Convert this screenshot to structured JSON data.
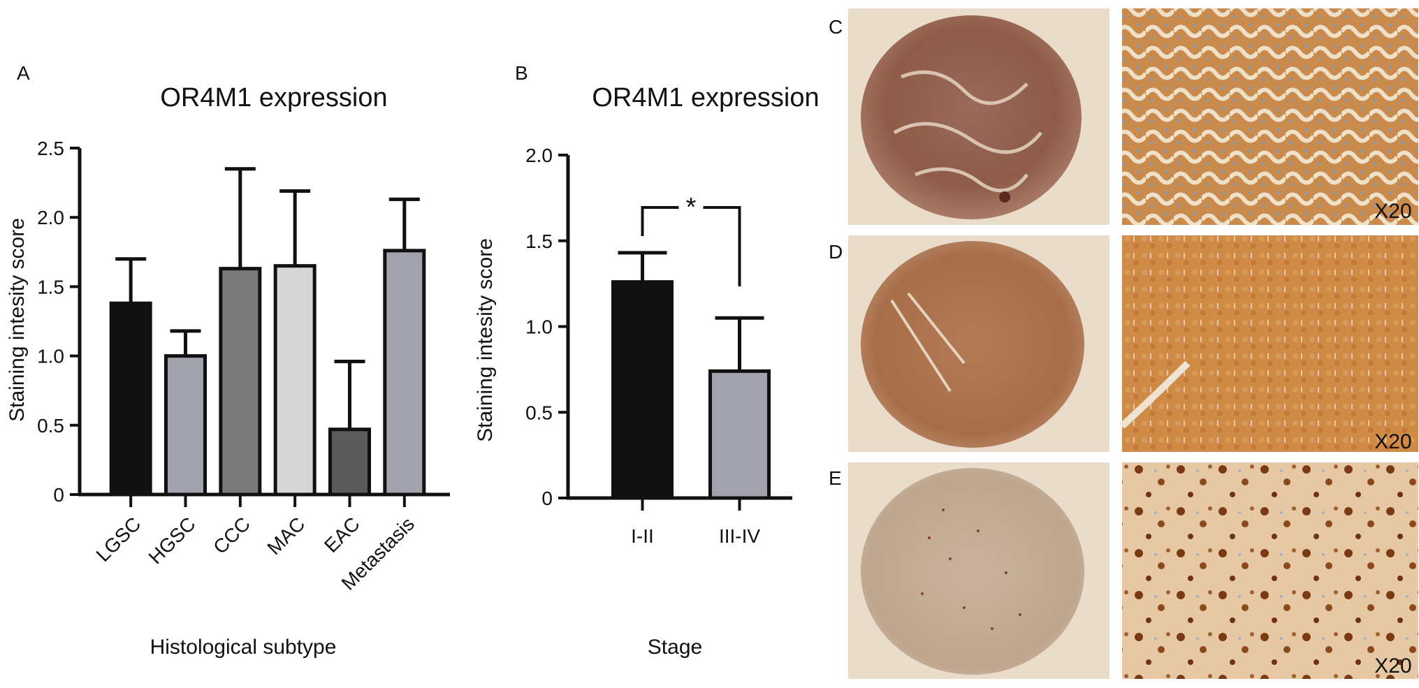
{
  "figure": {
    "panels": {
      "A": "A",
      "B": "B",
      "C": "C",
      "D": "D",
      "E": "E"
    },
    "magnification_labels": [
      "X20",
      "X20",
      "X20"
    ],
    "micrograph_descriptions": {
      "C": "tissue microarray core with brown papillary staining",
      "D": "tissue microarray core with strong diffuse brown staining",
      "E": "tissue microarray core with scattered brown nuclear staining"
    }
  },
  "chart_data": [
    {
      "type": "bar",
      "title": "OR4M1 expression",
      "xlabel": "Histological subtype",
      "ylabel": "Staining intesity score",
      "categories": [
        "LGSC",
        "HGSC",
        "CCC",
        "MAC",
        "EAC",
        "Metastasis"
      ],
      "values": [
        1.38,
        1.0,
        1.63,
        1.65,
        0.47,
        1.76
      ],
      "errors": [
        0.32,
        0.18,
        0.72,
        0.54,
        0.49,
        0.37
      ],
      "colors": [
        "#111111",
        "#a2a2ac",
        "#7a7a7a",
        "#d6d6d6",
        "#5b5b5b",
        "#a2a2ac"
      ],
      "ylim": [
        0,
        2.5
      ],
      "yticks": [
        0,
        0.5,
        1.0,
        1.5,
        2.0,
        2.5
      ],
      "ytick_labels": [
        "0",
        "0.5",
        "1.0",
        "1.5",
        "2.0",
        "2.5"
      ],
      "grid": false
    },
    {
      "type": "bar",
      "title": "OR4M1 expression",
      "xlabel": "Stage",
      "ylabel": "Staining intesity score",
      "categories": [
        "I-II",
        "III-IV"
      ],
      "values": [
        1.26,
        0.74
      ],
      "errors": [
        0.17,
        0.31
      ],
      "colors": [
        "#111111",
        "#a2a2ac"
      ],
      "ylim": [
        0,
        2.0
      ],
      "yticks": [
        0,
        0.5,
        1.0,
        1.5,
        2.0
      ],
      "ytick_labels": [
        "0",
        "0.5",
        "1.0",
        "1.5",
        "2.0"
      ],
      "significance": "*",
      "grid": false
    }
  ]
}
